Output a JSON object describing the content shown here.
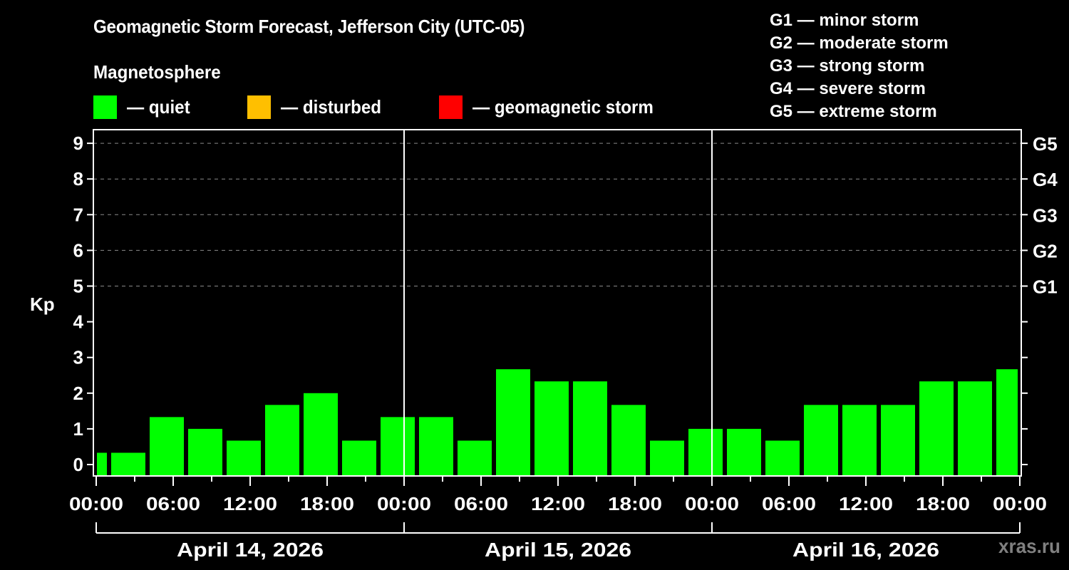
{
  "header": {
    "title": "Geomagnetic Storm Forecast, Jefferson City (UTC-05)",
    "subtitle": "Magnetosphere"
  },
  "legend": {
    "items": [
      {
        "label": "— quiet",
        "color": "#00ff00"
      },
      {
        "label": "— disturbed",
        "color": "#ffbf00"
      },
      {
        "label": "— geomagnetic storm",
        "color": "#ff0000"
      }
    ]
  },
  "storm_scale": [
    {
      "code": "G1",
      "label": "G1 — minor storm"
    },
    {
      "code": "G2",
      "label": "G2 — moderate storm"
    },
    {
      "code": "G3",
      "label": "G3 — strong storm"
    },
    {
      "code": "G4",
      "label": "G4 — severe storm"
    },
    {
      "code": "G5",
      "label": "G5 — extreme storm"
    }
  ],
  "watermark": "xras.ru",
  "chart_data": {
    "type": "bar",
    "title": "Geomagnetic Storm Forecast, Jefferson City (UTC-05)",
    "xlabel": "",
    "ylabel": "Kp",
    "ylim": [
      0,
      9
    ],
    "yticks": [
      0,
      1,
      2,
      3,
      4,
      5,
      6,
      7,
      8,
      9
    ],
    "right_axis_labels": [
      {
        "kp": 5,
        "label": "G1"
      },
      {
        "kp": 6,
        "label": "G2"
      },
      {
        "kp": 7,
        "label": "G3"
      },
      {
        "kp": 8,
        "label": "G4"
      },
      {
        "kp": 9,
        "label": "G5"
      }
    ],
    "grid": "dashed horizontal lines at Kp 5–9",
    "x_tick_labels": [
      "00:00",
      "06:00",
      "12:00",
      "18:00",
      "00:00",
      "06:00",
      "12:00",
      "18:00",
      "00:00",
      "06:00",
      "12:00",
      "18:00",
      "00:00"
    ],
    "days": [
      "April 14, 2026",
      "April 15, 2026",
      "April 16, 2026"
    ],
    "bar_interval_hours": 3,
    "bar_start_offset_hours": -2,
    "series": [
      {
        "name": "Kp forecast",
        "color": "#00ff00",
        "values": [
          0.33,
          0.33,
          1.33,
          1.0,
          0.67,
          1.67,
          2.0,
          0.67,
          1.33,
          1.33,
          0.67,
          2.67,
          2.33,
          2.33,
          1.67,
          0.67,
          1.0,
          1.0,
          0.67,
          1.67,
          1.67,
          1.67,
          2.33,
          2.33,
          2.67
        ],
        "status": [
          "quiet",
          "quiet",
          "quiet",
          "quiet",
          "quiet",
          "quiet",
          "quiet",
          "quiet",
          "quiet",
          "quiet",
          "quiet",
          "quiet",
          "quiet",
          "quiet",
          "quiet",
          "quiet",
          "quiet",
          "quiet",
          "quiet",
          "quiet",
          "quiet",
          "quiet",
          "quiet",
          "quiet",
          "quiet"
        ]
      }
    ]
  }
}
